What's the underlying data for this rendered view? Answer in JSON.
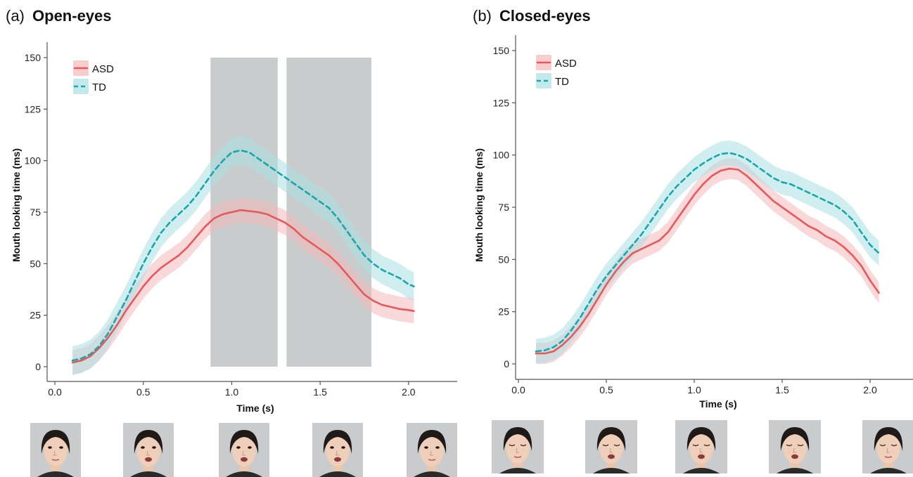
{
  "colors": {
    "asd": "#e8585a",
    "asd_band": "#f4b8b9",
    "td": "#16a7ad",
    "td_band": "#a9e0e3",
    "shade": "#a7acae",
    "axis": "#555555"
  },
  "icons": [
    "face-eyes-open-neutral",
    "face-eyes-open-talking",
    "face-eyes-closed-neutral",
    "face-eyes-closed-talking"
  ],
  "chart_data": [
    {
      "type": "line",
      "panel_letter": "(a)",
      "title": "Open-eyes",
      "xlabel": "Time (s)",
      "ylabel": "Mouth looking time (ms)",
      "xlim": [
        0.0,
        2.1
      ],
      "ylim": [
        0,
        150
      ],
      "x_ticks": [
        0.0,
        0.5,
        1.0,
        1.5,
        2.0
      ],
      "x_tick_labels": [
        "0.0",
        "0.5",
        "1.0",
        "1.5",
        "2.0"
      ],
      "y_ticks": [
        0,
        25,
        50,
        75,
        100,
        125,
        150
      ],
      "y_tick_labels": [
        "0",
        "25",
        "50",
        "75",
        "100",
        "125",
        "150"
      ],
      "legend": {
        "position": "top-left",
        "entries": [
          "ASD",
          "TD"
        ]
      },
      "grid": false,
      "shaded_regions": [
        [
          0.88,
          1.26
        ],
        [
          1.31,
          1.79
        ]
      ],
      "series": [
        {
          "name": "ASD",
          "style": "solid",
          "x": [
            0.1,
            0.15,
            0.2,
            0.25,
            0.3,
            0.35,
            0.4,
            0.45,
            0.5,
            0.55,
            0.6,
            0.65,
            0.7,
            0.75,
            0.8,
            0.85,
            0.9,
            0.95,
            1.0,
            1.05,
            1.1,
            1.15,
            1.2,
            1.25,
            1.3,
            1.35,
            1.4,
            1.45,
            1.5,
            1.55,
            1.6,
            1.65,
            1.7,
            1.75,
            1.8,
            1.85,
            1.9,
            1.95,
            2.0,
            2.03
          ],
          "y": [
            2,
            3,
            5,
            9,
            14,
            20,
            27,
            33,
            39,
            44,
            48,
            51,
            54,
            58,
            63,
            68,
            72,
            74,
            75,
            76,
            75.5,
            75,
            74,
            72,
            70,
            67,
            63,
            60,
            57,
            54,
            50,
            45,
            40,
            35,
            32,
            30,
            29,
            28,
            27.5,
            27
          ],
          "band": 6
        },
        {
          "name": "TD",
          "style": "dashed",
          "x": [
            0.1,
            0.15,
            0.2,
            0.25,
            0.3,
            0.35,
            0.4,
            0.45,
            0.5,
            0.55,
            0.6,
            0.65,
            0.7,
            0.75,
            0.8,
            0.85,
            0.9,
            0.95,
            1.0,
            1.05,
            1.1,
            1.15,
            1.2,
            1.25,
            1.3,
            1.35,
            1.4,
            1.45,
            1.5,
            1.55,
            1.6,
            1.65,
            1.7,
            1.75,
            1.8,
            1.85,
            1.9,
            1.95,
            2.0,
            2.03
          ],
          "y": [
            3,
            4,
            6,
            10,
            16,
            24,
            32,
            41,
            50,
            58,
            65,
            70,
            74,
            78,
            83,
            89,
            95,
            100,
            104,
            105,
            104,
            101,
            98,
            95,
            92,
            89,
            86,
            83,
            80,
            77,
            72,
            66,
            60,
            54,
            50,
            47,
            45,
            43,
            40,
            39
          ],
          "band": 7
        }
      ]
    },
    {
      "type": "line",
      "panel_letter": "(b)",
      "title": "Closed-eyes",
      "xlabel": "Time (s)",
      "ylabel": "Mouth looking time (ms)",
      "xlim": [
        0.0,
        2.1
      ],
      "ylim": [
        0,
        150
      ],
      "x_ticks": [
        0.0,
        0.5,
        1.0,
        1.5,
        2.0
      ],
      "x_tick_labels": [
        "0.0",
        "0.5",
        "1.0",
        "1.5",
        "2.0"
      ],
      "y_ticks": [
        0,
        25,
        50,
        75,
        100,
        125,
        150
      ],
      "y_tick_labels": [
        "0",
        "25",
        "50",
        "75",
        "100",
        "125",
        "150"
      ],
      "legend": {
        "position": "top-left",
        "entries": [
          "ASD",
          "TD"
        ]
      },
      "grid": false,
      "shaded_regions": [],
      "series": [
        {
          "name": "ASD",
          "style": "solid",
          "x": [
            0.1,
            0.15,
            0.2,
            0.25,
            0.3,
            0.35,
            0.4,
            0.45,
            0.5,
            0.55,
            0.6,
            0.65,
            0.7,
            0.75,
            0.8,
            0.85,
            0.9,
            0.95,
            1.0,
            1.05,
            1.1,
            1.15,
            1.2,
            1.25,
            1.3,
            1.35,
            1.4,
            1.45,
            1.5,
            1.55,
            1.6,
            1.65,
            1.7,
            1.75,
            1.8,
            1.85,
            1.9,
            1.95,
            2.0,
            2.05
          ],
          "y": [
            5,
            5,
            6,
            9,
            13,
            18,
            24,
            31,
            38,
            44,
            49,
            53,
            55,
            57,
            59,
            63,
            69,
            75,
            81,
            86,
            90,
            92.5,
            93.5,
            93,
            90,
            86,
            82,
            78,
            75,
            72,
            69,
            66,
            64,
            61,
            59,
            56,
            52,
            47,
            40,
            34
          ],
          "band": 5
        },
        {
          "name": "TD",
          "style": "dashed",
          "x": [
            0.1,
            0.15,
            0.2,
            0.25,
            0.3,
            0.35,
            0.4,
            0.45,
            0.5,
            0.55,
            0.6,
            0.65,
            0.7,
            0.75,
            0.8,
            0.85,
            0.9,
            0.95,
            1.0,
            1.05,
            1.1,
            1.15,
            1.2,
            1.25,
            1.3,
            1.35,
            1.4,
            1.45,
            1.5,
            1.55,
            1.6,
            1.65,
            1.7,
            1.75,
            1.8,
            1.85,
            1.9,
            1.95,
            2.0,
            2.05
          ],
          "y": [
            6,
            6.5,
            8,
            11,
            16,
            22,
            29,
            36,
            42,
            47,
            52,
            57,
            62,
            68,
            74,
            80,
            85,
            89,
            93,
            96,
            98.5,
            100.5,
            101,
            100,
            98,
            95,
            92,
            89,
            87,
            86,
            84,
            82,
            80,
            78,
            76,
            73,
            69,
            63,
            57,
            53
          ],
          "band": 6
        }
      ]
    }
  ],
  "legend_labels": [
    "ASD",
    "TD"
  ]
}
